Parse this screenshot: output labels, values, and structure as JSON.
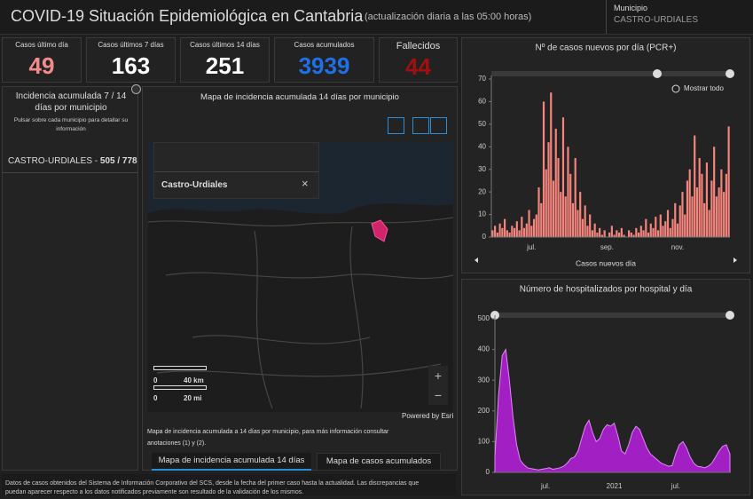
{
  "header": {
    "title": "COVID-19 Situación Epidemiológica en Cantabria",
    "subtitle": "(actualización diaria a las 05:00 horas)",
    "selector_label": "Municipio",
    "selector_value": "CASTRO-URDIALES"
  },
  "kpis": [
    {
      "label": "Casos último día",
      "value": 49,
      "color": "#f28b8b"
    },
    {
      "label": "Casos últimos 7 días",
      "value": 163,
      "color": "#ffffff"
    },
    {
      "label": "Casos últimos 14 días",
      "value": 251,
      "color": "#ffffff"
    },
    {
      "label": "Casos acumulados",
      "value": 3939,
      "color": "#1f6fe5"
    },
    {
      "label": "Fallecidos",
      "value": 44,
      "color": "#a30f0f"
    }
  ],
  "left_panel": {
    "title": "Incidencia acumulada 7 / 14 días por municipio",
    "hint": "Pulsar sobre cada municipio para detallar su información",
    "item_label": "CASTRO-URDIALES -",
    "item_value": "505 / 778"
  },
  "map": {
    "title": "Mapa de incidencia acumulada 14 días por municipio",
    "popup_title": "Castro-Urdiales",
    "scale_km_zero": "0",
    "scale_km": "40 km",
    "scale_mi_zero": "0",
    "scale_mi": "20 mi",
    "credit": "Powered by Esri",
    "note": "Mapa de incidencia acumulada a 14 días por municipio, para más información consultar anotaciones (1) y (2).",
    "tabs": [
      "Mapa de incidencia acumulada 14 días",
      "Mapa de casos acumulados"
    ]
  },
  "footer_note": "Datos de casos obtenidos del Sistema de Información Corporativo del SCS, desde la fecha del primer caso hasta la actualidad. Las discrepancias que puedan aparecer respecto a los datos notificados previamente son resultado de la validación de los mismos.",
  "chart_data": [
    {
      "type": "bar",
      "title": "Nº de casos nuevos por día (PCR+)",
      "zoom_label": "Mostrar todo",
      "x_label": "Casos nuevos día",
      "color": "#f4847c",
      "ylim": [
        0,
        70
      ],
      "yticks": [
        0,
        10,
        20,
        30,
        40,
        50,
        60,
        70
      ],
      "categories": [
        null,
        null,
        null,
        null,
        null,
        null,
        null,
        null,
        null,
        null,
        null,
        null,
        null,
        null,
        null,
        null,
        "jul.",
        null,
        null,
        null,
        null,
        null,
        null,
        null,
        null,
        null,
        null,
        null,
        null,
        null,
        null,
        null,
        null,
        null,
        null,
        null,
        null,
        null,
        null,
        null,
        null,
        null,
        null,
        null,
        null,
        null,
        null,
        "sep.",
        null,
        null,
        null,
        null,
        null,
        null,
        null,
        null,
        null,
        null,
        null,
        null,
        null,
        null,
        null,
        null,
        null,
        null,
        null,
        null,
        null,
        null,
        null,
        null,
        null,
        null,
        null,
        null,
        "nov.",
        null,
        null,
        null,
        null,
        null,
        null,
        null,
        null,
        null,
        null,
        null,
        null,
        null,
        null,
        null,
        null,
        null,
        null,
        null,
        null,
        null
      ],
      "values": [
        3,
        5,
        2,
        6,
        4,
        8,
        3,
        2,
        5,
        4,
        7,
        3,
        9,
        4,
        6,
        12,
        5,
        8,
        10,
        22,
        15,
        60,
        30,
        42,
        64,
        25,
        48,
        35,
        20,
        53,
        18,
        40,
        28,
        15,
        35,
        12,
        20,
        8,
        14,
        5,
        10,
        3,
        6,
        2,
        4,
        1,
        3,
        0,
        2,
        5,
        1,
        3,
        2,
        4,
        1,
        0,
        3,
        2,
        1,
        4,
        2,
        5,
        3,
        8,
        2,
        6,
        4,
        9,
        3,
        10,
        5,
        7,
        12,
        4,
        8,
        15,
        6,
        14,
        20,
        10,
        25,
        30,
        18,
        45,
        22,
        35,
        28,
        15,
        33,
        12,
        25,
        40,
        18,
        22,
        30,
        20,
        28,
        49
      ]
    },
    {
      "type": "area",
      "title": "Número de hospitalizados por hospital y día",
      "color": "#a21fc4",
      "ylim": [
        0,
        500
      ],
      "yticks": [
        0,
        100,
        200,
        300,
        400,
        500
      ],
      "categories": [
        null,
        null,
        null,
        null,
        null,
        null,
        null,
        null,
        null,
        null,
        null,
        null,
        null,
        null,
        "jul.",
        null,
        null,
        null,
        null,
        null,
        null,
        null,
        null,
        null,
        null,
        null,
        null,
        null,
        null,
        null,
        null,
        null,
        null,
        "2021",
        null,
        null,
        null,
        null,
        null,
        null,
        null,
        null,
        null,
        null,
        null,
        null,
        null,
        null,
        null,
        null,
        "jul.",
        null,
        null,
        null,
        null,
        null,
        null,
        null,
        null,
        null,
        null,
        null,
        null,
        null,
        null,
        null
      ],
      "values": [
        50,
        250,
        380,
        400,
        300,
        180,
        90,
        40,
        25,
        15,
        12,
        10,
        8,
        10,
        12,
        15,
        10,
        12,
        15,
        20,
        30,
        45,
        50,
        70,
        110,
        150,
        170,
        130,
        100,
        110,
        140,
        155,
        150,
        160,
        120,
        70,
        60,
        90,
        130,
        150,
        140,
        110,
        80,
        60,
        50,
        40,
        30,
        25,
        20,
        22,
        60,
        90,
        100,
        80,
        50,
        30,
        20,
        18,
        15,
        20,
        30,
        50,
        70,
        85,
        90,
        60
      ]
    }
  ]
}
